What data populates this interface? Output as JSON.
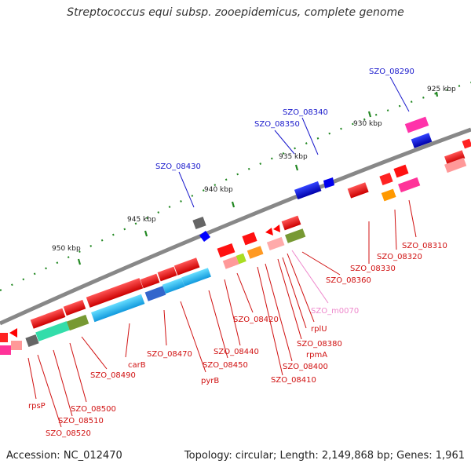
{
  "title": "Streptococcus equi subsp. zooepidemicus, complete genome",
  "footer": {
    "accession": "Accession: NC_012470",
    "summary": "Topology: circular; Length: 2,149,868 bp; Genes: 1,961"
  },
  "ticks": {
    "t925": "925 kbp",
    "t930": "930 kbp",
    "t935": "935 kbp",
    "t940": "940 kbp",
    "t945": "945 kbp",
    "t950": "950 kbp"
  },
  "labels": {
    "szo08290": "SZO_08290",
    "szo08340": "SZO_08340",
    "szo08350": "SZO_08350",
    "szo08430": "SZO_08430",
    "szo08310": "SZO_08310",
    "szo08320": "SZO_08320",
    "szo08330": "SZO_08330",
    "szo08360": "SZO_08360",
    "szom0070": "SZO_m0070",
    "rplU": "rplU",
    "rpmA": "rpmA",
    "szo08380": "SZO_08380",
    "szo08400": "SZO_08400",
    "szo08410": "SZO_08410",
    "szo08420": "SZO_08420",
    "szo08440": "SZO_08440",
    "szo08450": "SZO_08450",
    "pyrB": "pyrB",
    "szo08470": "SZO_08470",
    "carB": "carB",
    "szo08490": "SZO_08490",
    "szo08500": "SZO_08500",
    "szo08510": "SZO_08510",
    "szo08520": "SZO_08520",
    "rpsP": "rpsP"
  },
  "colors": {
    "backbone": "#808080",
    "cds_red": "#ff0000",
    "cds_blue": "#0000ff",
    "cds_cyan": "#22bbee",
    "cds_green": "#779933",
    "cds_pink": "#ff66aa",
    "cds_salmon": "#ffaaaa",
    "cds_orange": "#ff9900",
    "cds_gray": "#777777",
    "cds_teal": "#33ddaa",
    "tick_green": "#228822",
    "label_blue": "#1a1acc",
    "label_red": "#d01010",
    "label_pink": "#ee88cc"
  }
}
